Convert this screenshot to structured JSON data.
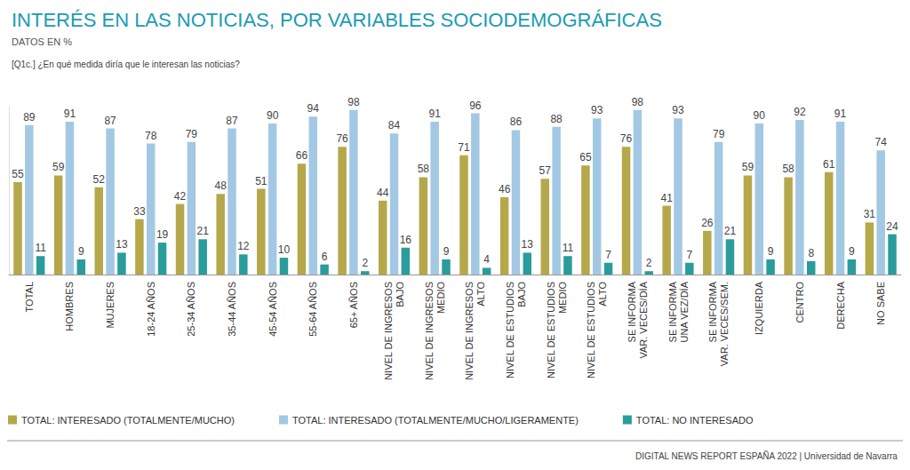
{
  "chart_data": {
    "type": "bar",
    "title": "INTERÉS EN LAS NOTICIAS, POR VARIABLES SOCIODEMOGRÁFICAS",
    "subtitle": "DATOS EN %",
    "annotations": [
      "[Q1c.] ¿En qué medida diría que le interesan las noticias?"
    ],
    "source": "DIGITAL NEWS REPORT ESPAÑA 2022 | Universidad de Navarra",
    "categories": [
      "TOTAL",
      "HOMBRES",
      "MUJERES",
      "18-24 AÑOS",
      "25-34 AÑOS",
      "35-44 AÑOS",
      "45-54 AÑOS",
      "55-64 AÑOS",
      "65+ AÑOS",
      "NIVEL DE INGRESOS\nBAJO",
      "NIVEL DE INGRESOS\nMEDIO",
      "NIVEL DE INGRESOS\nALTO",
      "NIVEL DE ESTUDIOS\nBAJO",
      "NIVEL DE ESTUDIOS\nMEDIO",
      "NIVEL DE ESTUDIOS\nALTO",
      "SE INFORMA\nVAR. VECES/DÍA",
      "SE INFORMA\nUNA VEZ/DÍA",
      "SE INFORMA\nVAR. VECES/SEM.",
      "IZQUIERDA",
      "CENTRO",
      "DERECHA",
      "NO SABE"
    ],
    "series": [
      {
        "name": "TOTAL: INTERESADO (TOTALMENTE/MUCHO)",
        "color": "#b5a84a",
        "values": [
          55,
          59,
          52,
          33,
          42,
          48,
          51,
          66,
          76,
          44,
          58,
          71,
          46,
          57,
          65,
          76,
          41,
          26,
          59,
          58,
          61,
          31
        ]
      },
      {
        "name": "TOTAL: INTERESADO (TOTALMENTE/MUCHO/LIGERAMENTE)",
        "color": "#a3c8e3",
        "values": [
          89,
          91,
          87,
          78,
          79,
          87,
          90,
          94,
          98,
          84,
          91,
          96,
          86,
          88,
          93,
          98,
          93,
          79,
          90,
          92,
          91,
          74
        ]
      },
      {
        "name": "TOTAL: NO INTERESADO",
        "color": "#2a9c9c",
        "values": [
          11,
          9,
          13,
          19,
          21,
          12,
          10,
          6,
          2,
          16,
          9,
          4,
          13,
          11,
          7,
          2,
          7,
          21,
          9,
          8,
          9,
          24
        ]
      }
    ],
    "ylim": [
      0,
      100
    ],
    "grid": false,
    "legend": "bottom",
    "data_labels": true,
    "tick_labels": "x"
  }
}
